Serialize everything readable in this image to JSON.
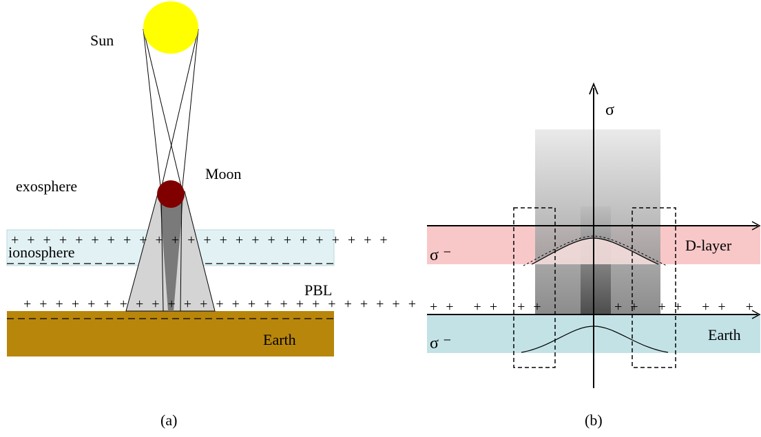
{
  "panel_a": {
    "caption": "(a)",
    "labels": {
      "sun": "Sun",
      "moon": "Moon",
      "exosphere": "exosphere",
      "ionosphere": "ionosphere",
      "pbl": "PBL",
      "earth": "Earth"
    },
    "charge_rows": {
      "ionosphere_top": "+ + + + + + + + + + + + + + + + + + + + + + + +",
      "ground_row": "+ + + + + + + + + + + + + + + + + + + + + + + + +"
    },
    "colors": {
      "sun": "#ffff00",
      "moon": "#800000",
      "ionosphere_band": "#e2f1f3",
      "earth": "#b8860b",
      "penumbra": "#d4d4d4",
      "umbra": "#7a7a7a"
    }
  },
  "panel_b": {
    "caption": "(b)",
    "labels": {
      "sigma_axis": "σ",
      "sigma_minus_upper": "σ ⁻",
      "sigma_minus_lower": "σ ⁻",
      "d_layer": "D-layer",
      "earth": "Earth"
    },
    "charge_rows": {
      "left": "+ +   + +   + +",
      "right": "+ +   + +   + +   + +   + +"
    },
    "colors": {
      "d_layer_band": "#f8c8c8",
      "earth_band": "#c3e2e6"
    }
  }
}
